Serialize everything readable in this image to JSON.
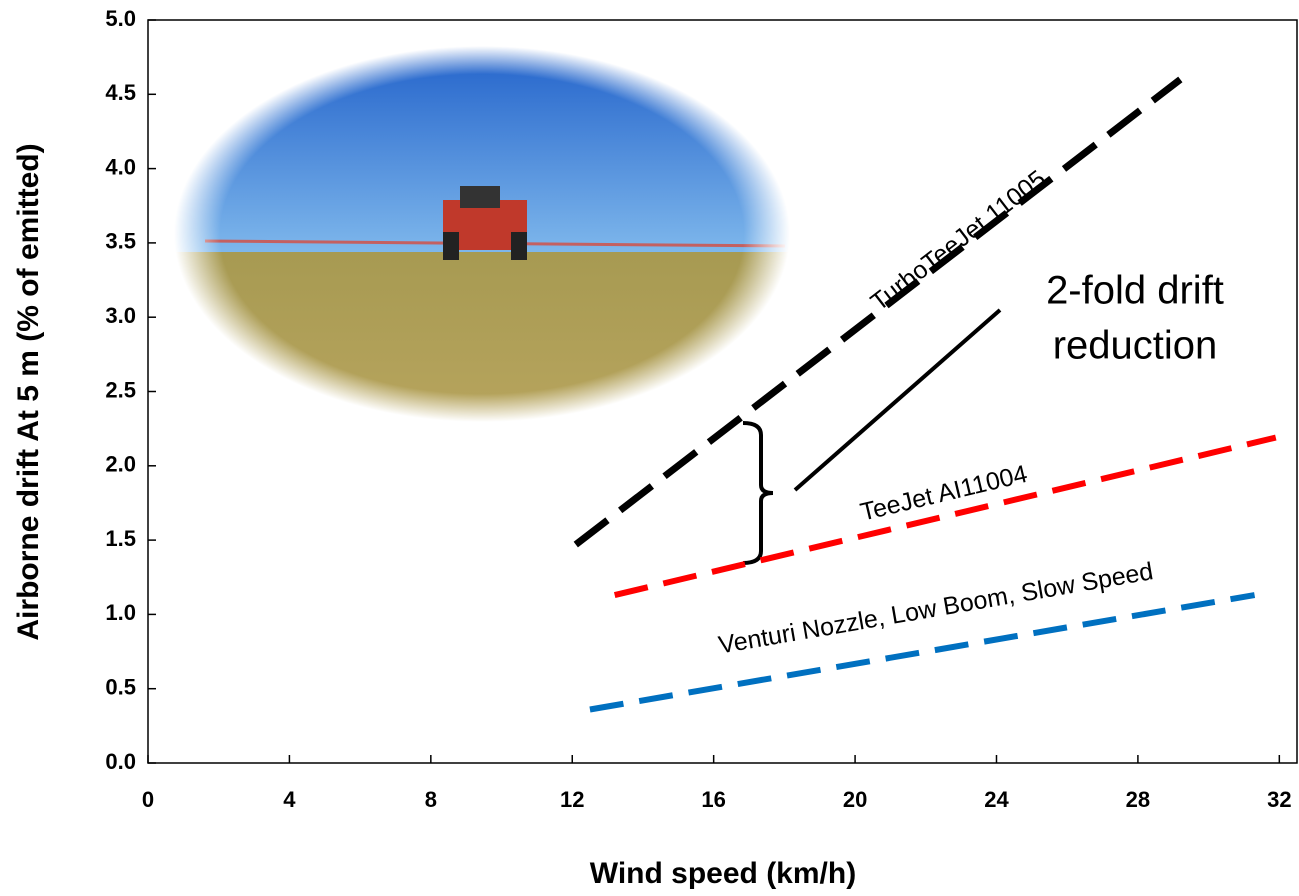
{
  "chart_data": {
    "type": "line",
    "x_label": "Wind speed (km/h)",
    "y_label": "Airborne drift At 5 m (% of emitted)",
    "annotation": [
      "2-fold drift",
      "reduction"
    ],
    "xlim": [
      0,
      32.5
    ],
    "xticks": [
      0,
      4,
      8,
      12,
      16,
      20,
      24,
      28,
      32
    ],
    "ylim": [
      0,
      5
    ],
    "yticks": [
      {
        "value": 0,
        "label": "0.0"
      },
      0.5,
      {
        "value": 1,
        "label": "1.0"
      },
      1.5,
      {
        "value": 2,
        "label": "2.0"
      },
      2.5,
      {
        "value": 3,
        "label": "3.0"
      },
      3.5,
      {
        "value": 4,
        "label": "4.0"
      },
      4.5,
      {
        "value": 5,
        "label": "5.0"
      }
    ],
    "series": [
      {
        "name": "TurboTeeJet 11005",
        "color": "#000000",
        "x": [
          12.1,
          29.2
        ],
        "values": [
          1.47,
          4.6
        ]
      },
      {
        "name": "TeeJet AI11004",
        "color": "#ff0000",
        "x": [
          13.2,
          31.9
        ],
        "values": [
          1.13,
          2.19
        ]
      },
      {
        "name": "Venturi Nozzle, Low Boom, Slow Speed",
        "color": "#0070c0",
        "x": [
          12.5,
          31.3
        ],
        "values": [
          0.36,
          1.13
        ]
      }
    ]
  }
}
